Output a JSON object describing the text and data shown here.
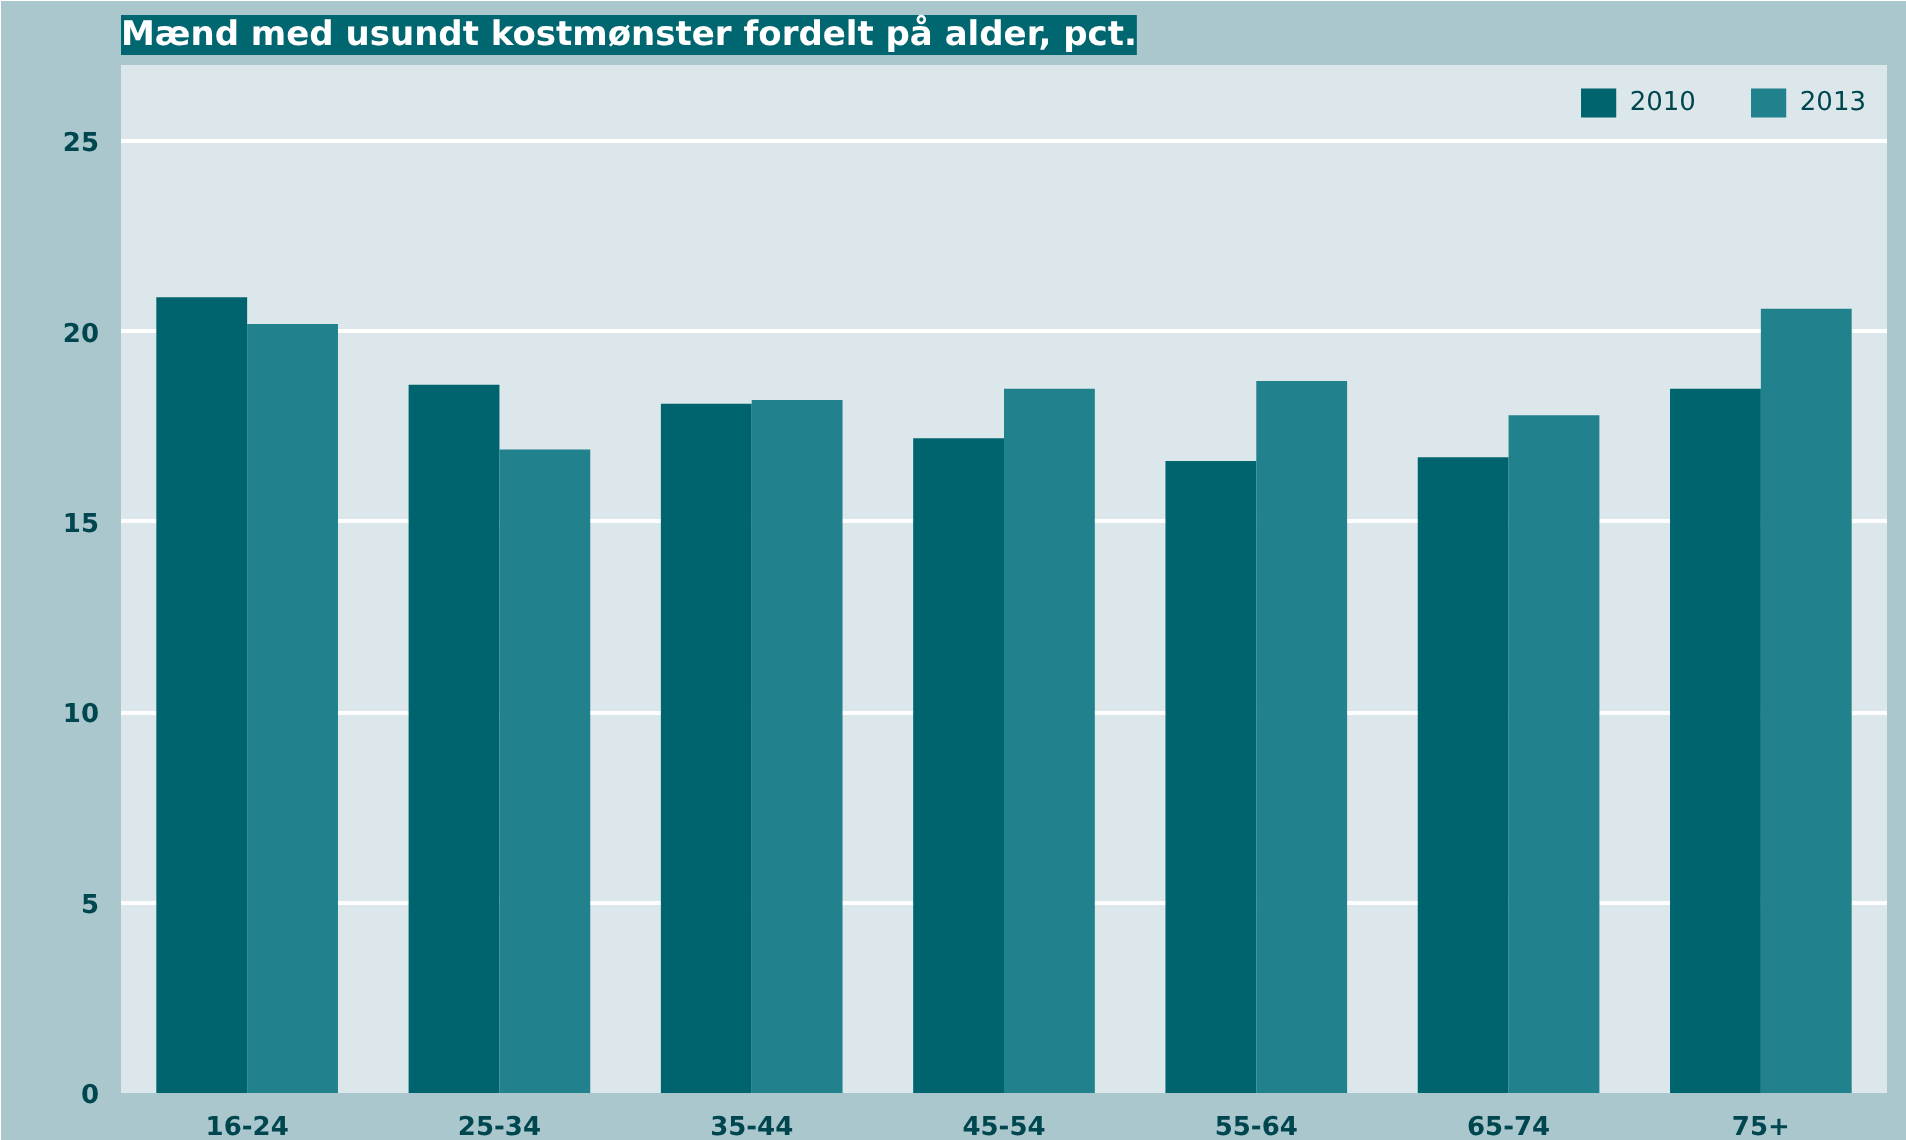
{
  "chart_data": {
    "type": "bar",
    "title": "Mænd med usundt kostmønster fordelt på alder, pct.",
    "categories": [
      "16-24",
      "25-34",
      "35-44",
      "45-54",
      "55-64",
      "65-74",
      "75+"
    ],
    "series": [
      {
        "name": "2010",
        "color": "#00646e",
        "values": [
          20.9,
          18.6,
          18.1,
          17.2,
          16.6,
          16.7,
          18.5
        ]
      },
      {
        "name": "2013",
        "color": "#21818c",
        "values": [
          20.2,
          16.9,
          18.2,
          18.5,
          18.7,
          17.8,
          20.6
        ]
      }
    ],
    "ylim": [
      0,
      27
    ],
    "yticks": [
      0,
      5,
      10,
      15,
      20,
      25
    ],
    "grid": "y",
    "legend": "top right"
  }
}
